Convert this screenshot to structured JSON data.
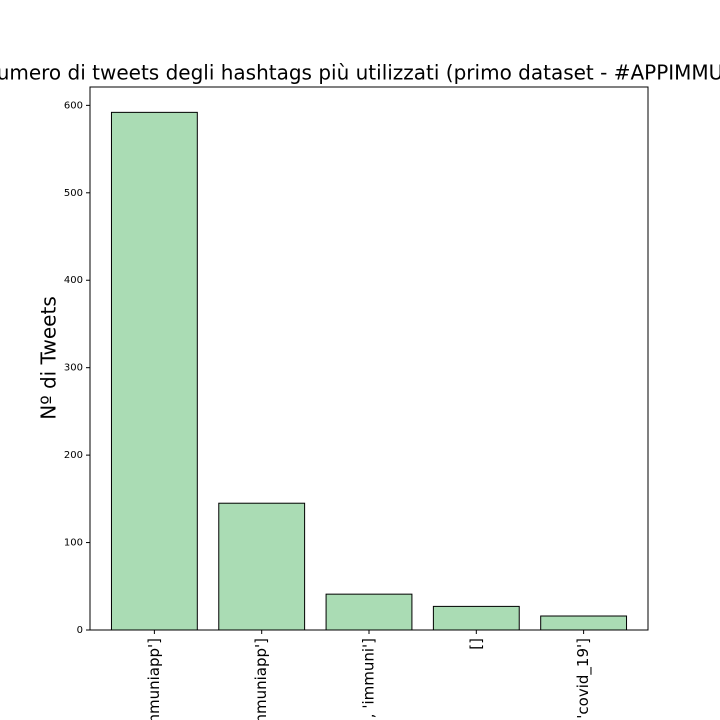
{
  "chart_data": {
    "type": "bar",
    "title": "umero di tweets degli hashtags più utilizzati (primo dataset - #APPIMMU",
    "y_label": "Nº di Tweets",
    "categories": [
      "mmuniapp']",
      "mmuniapp']",
      ", 'immuni']",
      "[]",
      "'covid_19']"
    ],
    "values": [
      592,
      145,
      41,
      27,
      16
    ],
    "color": "#aadcb4",
    "edgecolor": "#000000",
    "ylim": [
      0,
      621
    ],
    "yticks": [
      0,
      100,
      200,
      300,
      400,
      500,
      600
    ],
    "grid": false
  }
}
